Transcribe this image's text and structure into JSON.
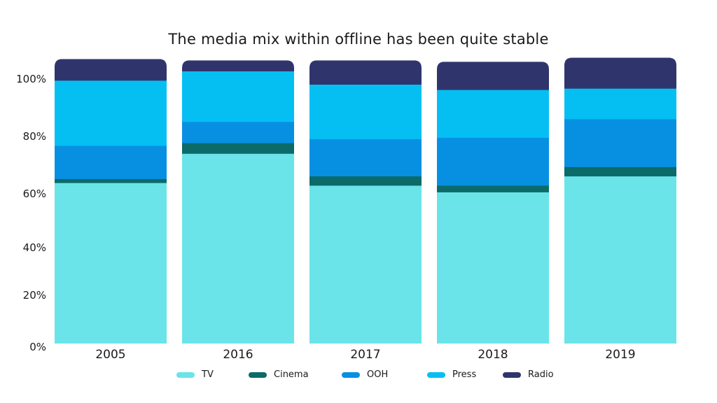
{
  "chart_data": {
    "type": "bar",
    "stacked": true,
    "title": "The media mix within offline has been quite stable",
    "categories": [
      "2005",
      "2016",
      "2017",
      "2018",
      "2019"
    ],
    "y_ticks": [
      "0%",
      "20%",
      "40%",
      "60%",
      "80%",
      "100%"
    ],
    "ylim": [
      0,
      100
    ],
    "series": [
      {
        "name": "TV",
        "color": "#6ae4e8",
        "values": [
          60.5,
          71.5,
          59.5,
          57,
          63
        ]
      },
      {
        "name": "Cinema",
        "color": "#0b6b68",
        "values": [
          1.5,
          4,
          3.5,
          2.5,
          3.5
        ]
      },
      {
        "name": "OOH",
        "color": "#0790e2",
        "values": [
          12.5,
          8,
          14,
          18,
          18
        ]
      },
      {
        "name": "Press",
        "color": "#05bff3",
        "values": [
          24.5,
          19,
          20.5,
          18,
          11.5
        ]
      },
      {
        "name": "Radio",
        "color": "#2f356c",
        "values": [
          8,
          4,
          9,
          10.5,
          11.5
        ]
      }
    ],
    "legend_position": "bottom",
    "grid": false
  }
}
